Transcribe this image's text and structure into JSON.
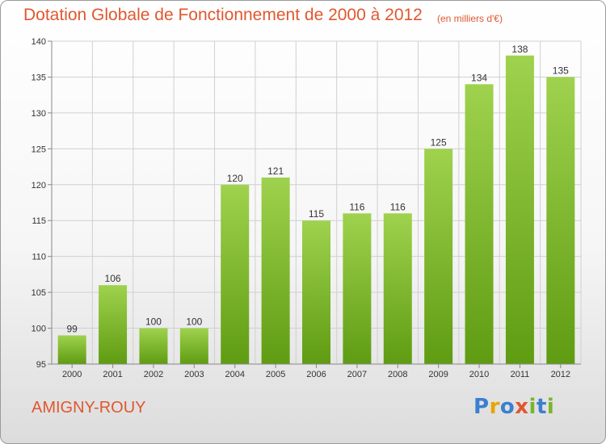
{
  "header": {
    "title": "Dotation Globale de Fonctionnement de 2000 à 2012",
    "subtitle": "(en milliers d'€)"
  },
  "footer": {
    "commune": "AMIGNY-ROUY",
    "logo_text": "Proxiti"
  },
  "colors": {
    "accent": "#e0572f",
    "bar_top": "#9fd24e",
    "bar_bottom": "#5f9c12",
    "grid": "#d0d0d0",
    "axis": "#888888",
    "logo_letters": [
      "#3b7fd0",
      "#e8a400",
      "#3b7fd0",
      "#e0572f",
      "#79b52a",
      "#3b7fd0",
      "#79b52a"
    ]
  },
  "chart_data": {
    "type": "bar",
    "title": "Dotation Globale de Fonctionnement de 2000 à 2012",
    "subtitle": "(en milliers d'€)",
    "xlabel": "",
    "ylabel": "",
    "categories": [
      "2000",
      "2001",
      "2002",
      "2003",
      "2004",
      "2005",
      "2006",
      "2007",
      "2008",
      "2009",
      "2010",
      "2011",
      "2012"
    ],
    "values": [
      99,
      106,
      100,
      100,
      120,
      121,
      115,
      116,
      116,
      125,
      134,
      138,
      135
    ],
    "ylim": [
      95,
      140
    ],
    "yticks": [
      95,
      100,
      105,
      110,
      115,
      120,
      125,
      130,
      135,
      140
    ],
    "grid": true,
    "legend": "none"
  }
}
